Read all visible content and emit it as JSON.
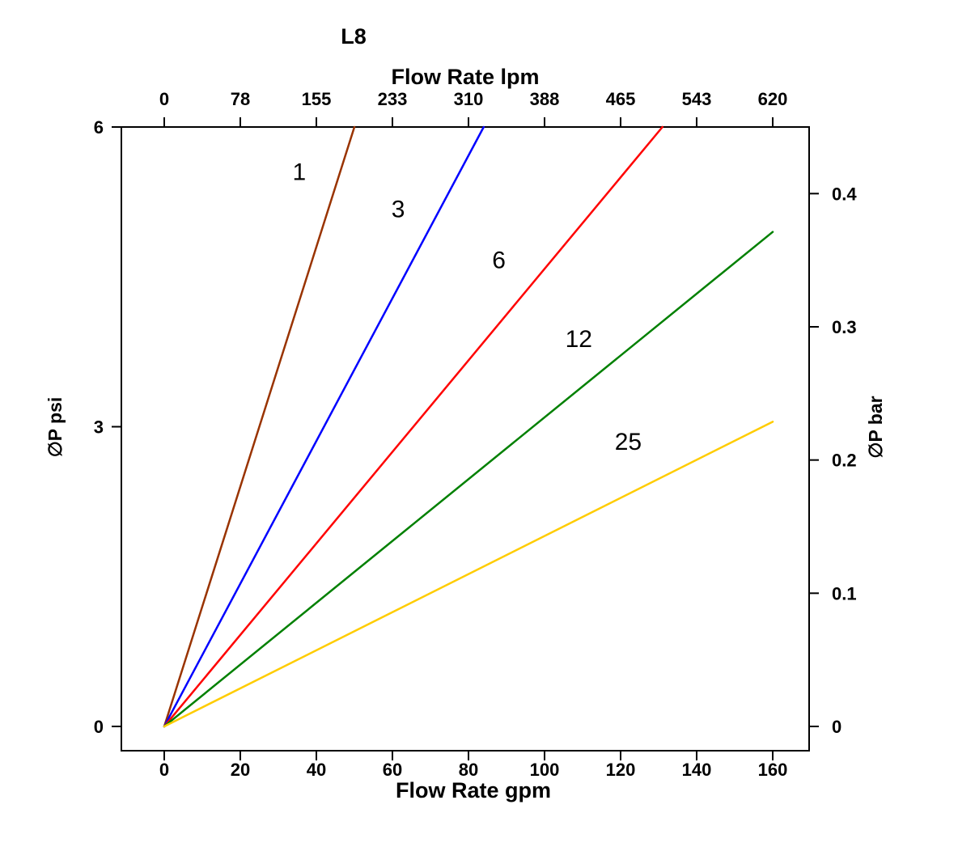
{
  "chart_data": {
    "type": "line",
    "title": "L8",
    "top_axis": {
      "label": "Flow Rate lpm",
      "ticks": [
        "0",
        "78",
        "155",
        "233",
        "310",
        "388",
        "465",
        "543",
        "620"
      ]
    },
    "bottom_axis": {
      "label": "Flow Rate gpm",
      "ticks": [
        0,
        20,
        40,
        60,
        80,
        100,
        120,
        140,
        160
      ],
      "range": [
        0,
        160
      ]
    },
    "left_axis": {
      "label": "∅P psi",
      "ticks": [
        0,
        3,
        6
      ],
      "range": [
        0,
        6
      ]
    },
    "right_axis": {
      "label": "∅P bar",
      "tick_labels": [
        "0",
        "0.1",
        "0.2",
        "0.3",
        "0.4"
      ],
      "tick_values": [
        0,
        0.1,
        0.2,
        0.3,
        0.4
      ],
      "range": [
        0,
        0.45
      ]
    },
    "grid": false,
    "legend_position": "inline-labels",
    "series": [
      {
        "name": "1",
        "color": "#993300",
        "points": [
          [
            0,
            0
          ],
          [
            50,
            6
          ]
        ],
        "label_at": [
          35.5,
          5.55
        ]
      },
      {
        "name": "3",
        "color": "#0000ff",
        "points": [
          [
            0,
            0
          ],
          [
            84,
            6
          ]
        ],
        "label_at": [
          61.5,
          5.18
        ]
      },
      {
        "name": "6",
        "color": "#ff0000",
        "points": [
          [
            0,
            0
          ],
          [
            131,
            6
          ]
        ],
        "label_at": [
          88,
          4.67
        ]
      },
      {
        "name": "12",
        "color": "#008000",
        "points": [
          [
            0,
            0
          ],
          [
            160,
            4.95
          ]
        ],
        "label_at": [
          109,
          3.88
        ]
      },
      {
        "name": "25",
        "color": "#ffcc00",
        "points": [
          [
            0,
            0
          ],
          [
            160,
            3.05
          ]
        ],
        "label_at": [
          122,
          2.85
        ]
      }
    ]
  }
}
